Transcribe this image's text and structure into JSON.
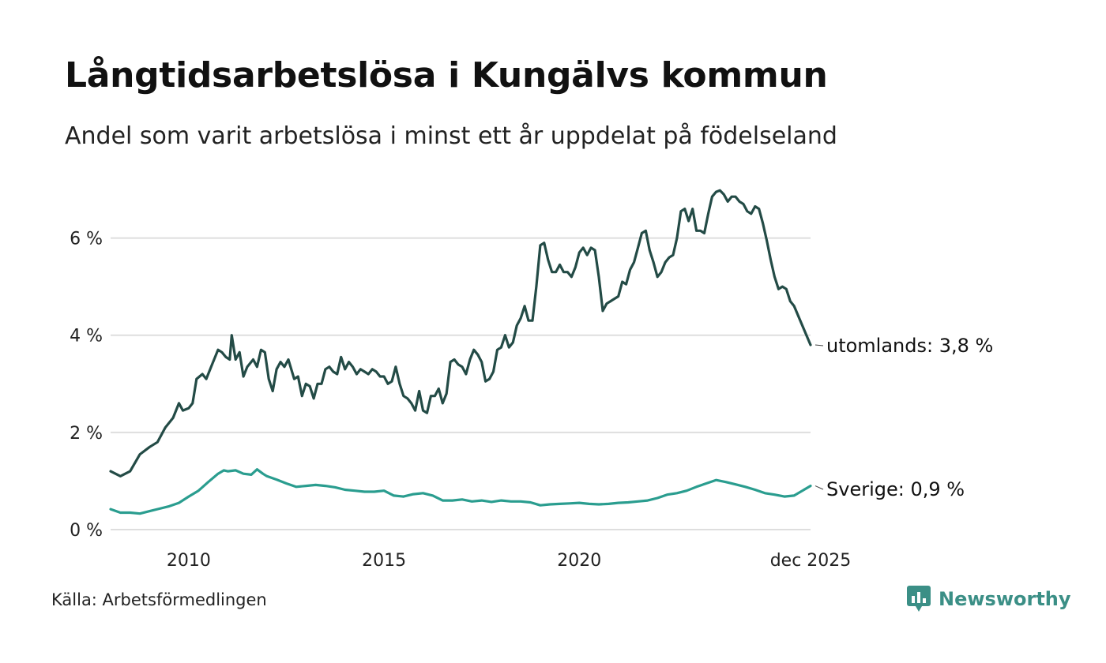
{
  "title": "Långtidsarbetslösa i Kungälvs kommun",
  "subtitle": "Andel som varit arbetslösa i minst ett år uppdelat på födelseland",
  "source": "Källa: Arbetsförmedlingen",
  "brand": {
    "name": "Newsworthy",
    "icon": "newsworthy-logo-icon",
    "color": "#3b8f86"
  },
  "chart_data": {
    "type": "line",
    "xlabel": "",
    "ylabel": "",
    "xlim": [
      2008.0,
      2025.92
    ],
    "ylim": [
      0,
      7
    ],
    "grid": true,
    "y_ticks": [
      {
        "value": 0,
        "label": "0 %"
      },
      {
        "value": 2,
        "label": "2 %"
      },
      {
        "value": 4,
        "label": "4 %"
      },
      {
        "value": 6,
        "label": "6 %"
      }
    ],
    "x_ticks": [
      {
        "value": 2010,
        "label": "2010"
      },
      {
        "value": 2015,
        "label": "2015"
      },
      {
        "value": 2020,
        "label": "2020"
      },
      {
        "value": 2025.92,
        "label": "dec 2025"
      }
    ],
    "series": [
      {
        "name": "utomlands",
        "end_label": "utomlands: 3,8 %",
        "color": "#234b46",
        "points": [
          [
            2008.0,
            1.2
          ],
          [
            2008.25,
            1.1
          ],
          [
            2008.5,
            1.2
          ],
          [
            2008.75,
            1.55
          ],
          [
            2009.0,
            1.7
          ],
          [
            2009.2,
            1.8
          ],
          [
            2009.4,
            2.1
          ],
          [
            2009.6,
            2.3
          ],
          [
            2009.75,
            2.6
          ],
          [
            2009.85,
            2.45
          ],
          [
            2010.0,
            2.5
          ],
          [
            2010.1,
            2.6
          ],
          [
            2010.2,
            3.1
          ],
          [
            2010.35,
            3.2
          ],
          [
            2010.45,
            3.1
          ],
          [
            2010.6,
            3.4
          ],
          [
            2010.75,
            3.7
          ],
          [
            2010.85,
            3.65
          ],
          [
            2010.95,
            3.55
          ],
          [
            2011.05,
            3.5
          ],
          [
            2011.1,
            4.0
          ],
          [
            2011.2,
            3.5
          ],
          [
            2011.3,
            3.65
          ],
          [
            2011.4,
            3.15
          ],
          [
            2011.5,
            3.35
          ],
          [
            2011.65,
            3.5
          ],
          [
            2011.75,
            3.35
          ],
          [
            2011.85,
            3.7
          ],
          [
            2011.95,
            3.65
          ],
          [
            2012.05,
            3.1
          ],
          [
            2012.15,
            2.85
          ],
          [
            2012.25,
            3.3
          ],
          [
            2012.35,
            3.45
          ],
          [
            2012.45,
            3.35
          ],
          [
            2012.55,
            3.5
          ],
          [
            2012.7,
            3.1
          ],
          [
            2012.8,
            3.15
          ],
          [
            2012.9,
            2.75
          ],
          [
            2013.0,
            3.0
          ],
          [
            2013.1,
            2.95
          ],
          [
            2013.2,
            2.7
          ],
          [
            2013.3,
            3.0
          ],
          [
            2013.4,
            3.0
          ],
          [
            2013.5,
            3.3
          ],
          [
            2013.6,
            3.35
          ],
          [
            2013.7,
            3.25
          ],
          [
            2013.8,
            3.2
          ],
          [
            2013.9,
            3.55
          ],
          [
            2014.0,
            3.3
          ],
          [
            2014.1,
            3.45
          ],
          [
            2014.2,
            3.35
          ],
          [
            2014.3,
            3.2
          ],
          [
            2014.4,
            3.3
          ],
          [
            2014.5,
            3.25
          ],
          [
            2014.6,
            3.2
          ],
          [
            2014.7,
            3.3
          ],
          [
            2014.8,
            3.25
          ],
          [
            2014.9,
            3.15
          ],
          [
            2015.0,
            3.15
          ],
          [
            2015.1,
            3.0
          ],
          [
            2015.2,
            3.05
          ],
          [
            2015.3,
            3.35
          ],
          [
            2015.4,
            3.0
          ],
          [
            2015.5,
            2.75
          ],
          [
            2015.6,
            2.7
          ],
          [
            2015.7,
            2.6
          ],
          [
            2015.8,
            2.45
          ],
          [
            2015.9,
            2.85
          ],
          [
            2016.0,
            2.45
          ],
          [
            2016.1,
            2.4
          ],
          [
            2016.2,
            2.75
          ],
          [
            2016.3,
            2.75
          ],
          [
            2016.4,
            2.9
          ],
          [
            2016.5,
            2.6
          ],
          [
            2016.6,
            2.8
          ],
          [
            2016.7,
            3.45
          ],
          [
            2016.8,
            3.5
          ],
          [
            2016.9,
            3.4
          ],
          [
            2017.0,
            3.35
          ],
          [
            2017.1,
            3.2
          ],
          [
            2017.2,
            3.5
          ],
          [
            2017.3,
            3.7
          ],
          [
            2017.4,
            3.6
          ],
          [
            2017.5,
            3.45
          ],
          [
            2017.6,
            3.05
          ],
          [
            2017.7,
            3.1
          ],
          [
            2017.8,
            3.25
          ],
          [
            2017.9,
            3.7
          ],
          [
            2018.0,
            3.75
          ],
          [
            2018.1,
            4.0
          ],
          [
            2018.2,
            3.75
          ],
          [
            2018.3,
            3.85
          ],
          [
            2018.4,
            4.2
          ],
          [
            2018.5,
            4.35
          ],
          [
            2018.6,
            4.6
          ],
          [
            2018.7,
            4.3
          ],
          [
            2018.8,
            4.3
          ],
          [
            2018.9,
            5.0
          ],
          [
            2019.0,
            5.85
          ],
          [
            2019.1,
            5.9
          ],
          [
            2019.2,
            5.55
          ],
          [
            2019.3,
            5.3
          ],
          [
            2019.4,
            5.3
          ],
          [
            2019.5,
            5.45
          ],
          [
            2019.6,
            5.3
          ],
          [
            2019.7,
            5.3
          ],
          [
            2019.8,
            5.2
          ],
          [
            2019.9,
            5.4
          ],
          [
            2020.0,
            5.7
          ],
          [
            2020.1,
            5.8
          ],
          [
            2020.2,
            5.65
          ],
          [
            2020.3,
            5.8
          ],
          [
            2020.4,
            5.75
          ],
          [
            2020.5,
            5.2
          ],
          [
            2020.6,
            4.5
          ],
          [
            2020.7,
            4.65
          ],
          [
            2020.8,
            4.7
          ],
          [
            2020.9,
            4.75
          ],
          [
            2021.0,
            4.8
          ],
          [
            2021.1,
            5.1
          ],
          [
            2021.2,
            5.05
          ],
          [
            2021.3,
            5.35
          ],
          [
            2021.4,
            5.5
          ],
          [
            2021.5,
            5.8
          ],
          [
            2021.6,
            6.1
          ],
          [
            2021.7,
            6.15
          ],
          [
            2021.8,
            5.75
          ],
          [
            2021.9,
            5.5
          ],
          [
            2022.0,
            5.2
          ],
          [
            2022.1,
            5.3
          ],
          [
            2022.2,
            5.5
          ],
          [
            2022.3,
            5.6
          ],
          [
            2022.4,
            5.65
          ],
          [
            2022.5,
            6.0
          ],
          [
            2022.6,
            6.55
          ],
          [
            2022.7,
            6.6
          ],
          [
            2022.8,
            6.35
          ],
          [
            2022.9,
            6.6
          ],
          [
            2023.0,
            6.15
          ],
          [
            2023.1,
            6.15
          ],
          [
            2023.2,
            6.1
          ],
          [
            2023.3,
            6.5
          ],
          [
            2023.4,
            6.85
          ],
          [
            2023.5,
            6.95
          ],
          [
            2023.6,
            6.98
          ],
          [
            2023.7,
            6.9
          ],
          [
            2023.8,
            6.75
          ],
          [
            2023.9,
            6.85
          ],
          [
            2024.0,
            6.85
          ],
          [
            2024.1,
            6.75
          ],
          [
            2024.2,
            6.7
          ],
          [
            2024.3,
            6.55
          ],
          [
            2024.4,
            6.5
          ],
          [
            2024.5,
            6.65
          ],
          [
            2024.6,
            6.6
          ],
          [
            2024.7,
            6.3
          ],
          [
            2024.8,
            5.95
          ],
          [
            2024.9,
            5.55
          ],
          [
            2025.0,
            5.2
          ],
          [
            2025.1,
            4.95
          ],
          [
            2025.2,
            5.0
          ],
          [
            2025.3,
            4.95
          ],
          [
            2025.4,
            4.7
          ],
          [
            2025.5,
            4.6
          ],
          [
            2025.92,
            3.8
          ]
        ]
      },
      {
        "name": "Sverige",
        "end_label": "Sverige: 0,9 %",
        "color": "#2a9d8f",
        "points": [
          [
            2008.0,
            0.42
          ],
          [
            2008.25,
            0.35
          ],
          [
            2008.5,
            0.35
          ],
          [
            2008.75,
            0.33
          ],
          [
            2009.0,
            0.38
          ],
          [
            2009.25,
            0.43
          ],
          [
            2009.5,
            0.48
          ],
          [
            2009.75,
            0.55
          ],
          [
            2010.0,
            0.68
          ],
          [
            2010.25,
            0.8
          ],
          [
            2010.5,
            0.98
          ],
          [
            2010.75,
            1.15
          ],
          [
            2010.9,
            1.22
          ],
          [
            2011.0,
            1.2
          ],
          [
            2011.2,
            1.22
          ],
          [
            2011.4,
            1.15
          ],
          [
            2011.6,
            1.13
          ],
          [
            2011.75,
            1.24
          ],
          [
            2011.9,
            1.15
          ],
          [
            2012.0,
            1.1
          ],
          [
            2012.25,
            1.03
          ],
          [
            2012.5,
            0.95
          ],
          [
            2012.75,
            0.88
          ],
          [
            2013.0,
            0.9
          ],
          [
            2013.25,
            0.92
          ],
          [
            2013.5,
            0.9
          ],
          [
            2013.75,
            0.87
          ],
          [
            2014.0,
            0.82
          ],
          [
            2014.25,
            0.8
          ],
          [
            2014.5,
            0.78
          ],
          [
            2014.75,
            0.78
          ],
          [
            2015.0,
            0.8
          ],
          [
            2015.25,
            0.7
          ],
          [
            2015.5,
            0.68
          ],
          [
            2015.75,
            0.73
          ],
          [
            2016.0,
            0.75
          ],
          [
            2016.25,
            0.7
          ],
          [
            2016.5,
            0.6
          ],
          [
            2016.75,
            0.6
          ],
          [
            2017.0,
            0.62
          ],
          [
            2017.25,
            0.58
          ],
          [
            2017.5,
            0.6
          ],
          [
            2017.75,
            0.57
          ],
          [
            2018.0,
            0.6
          ],
          [
            2018.25,
            0.58
          ],
          [
            2018.5,
            0.58
          ],
          [
            2018.75,
            0.56
          ],
          [
            2019.0,
            0.5
          ],
          [
            2019.25,
            0.52
          ],
          [
            2019.5,
            0.53
          ],
          [
            2019.75,
            0.54
          ],
          [
            2020.0,
            0.55
          ],
          [
            2020.25,
            0.53
          ],
          [
            2020.5,
            0.52
          ],
          [
            2020.75,
            0.53
          ],
          [
            2021.0,
            0.55
          ],
          [
            2021.25,
            0.56
          ],
          [
            2021.5,
            0.58
          ],
          [
            2021.75,
            0.6
          ],
          [
            2022.0,
            0.65
          ],
          [
            2022.25,
            0.72
          ],
          [
            2022.5,
            0.75
          ],
          [
            2022.75,
            0.8
          ],
          [
            2023.0,
            0.88
          ],
          [
            2023.25,
            0.95
          ],
          [
            2023.5,
            1.02
          ],
          [
            2023.75,
            0.98
          ],
          [
            2024.0,
            0.93
          ],
          [
            2024.25,
            0.88
          ],
          [
            2024.5,
            0.82
          ],
          [
            2024.75,
            0.75
          ],
          [
            2025.0,
            0.72
          ],
          [
            2025.25,
            0.68
          ],
          [
            2025.5,
            0.7
          ],
          [
            2025.92,
            0.9
          ]
        ]
      }
    ]
  }
}
